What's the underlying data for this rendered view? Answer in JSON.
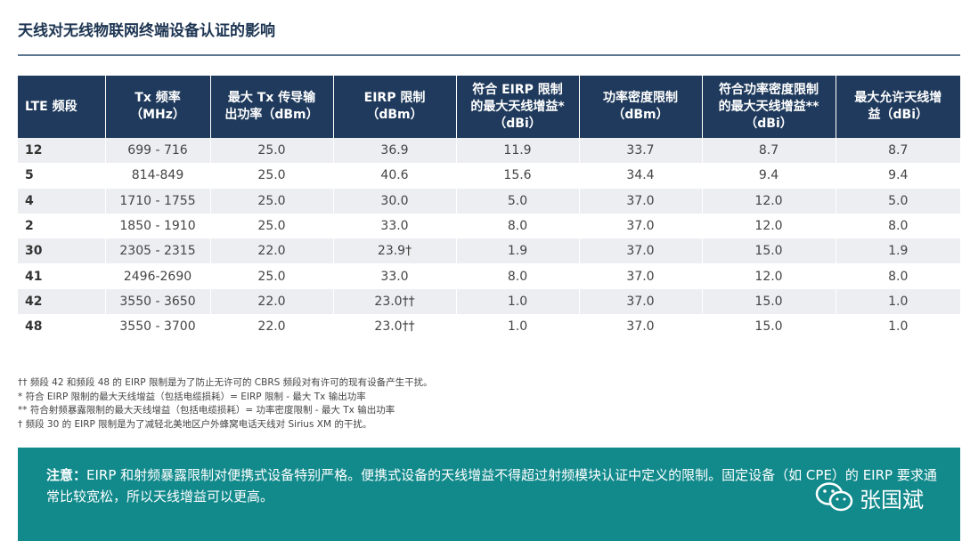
{
  "title": "天线对无线物联网终端设备认证的影响",
  "table": {
    "headers": [
      [
        "LTE 频段"
      ],
      [
        "Tx 频率",
        "（MHz）"
      ],
      [
        "最大 Tx 传导输",
        "出功率（dBm）"
      ],
      [
        "EIRP 限制",
        "（dBm）"
      ],
      [
        "符合 EIRP 限制",
        "的最大天线增益*",
        "（dBi）"
      ],
      [
        "功率密度限制",
        "（dBm）"
      ],
      [
        "符合功率密度限制",
        "的最大天线增益**",
        "（dBi）"
      ],
      [
        "最大允许天线增",
        "益（dBi）"
      ]
    ],
    "rows": [
      [
        "12",
        "699 - 716",
        "25.0",
        "36.9",
        "11.9",
        "33.7",
        "8.7",
        "8.7"
      ],
      [
        "5",
        "814-849",
        "25.0",
        "40.6",
        "15.6",
        "34.4",
        "9.4",
        "9.4"
      ],
      [
        "4",
        "1710 - 1755",
        "25.0",
        "30.0",
        "5.0",
        "37.0",
        "12.0",
        "5.0"
      ],
      [
        "2",
        "1850 - 1910",
        "25.0",
        "33.0",
        "8.0",
        "37.0",
        "12.0",
        "8.0"
      ],
      [
        "30",
        "2305 - 2315",
        "22.0",
        "23.9†",
        "1.9",
        "37.0",
        "15.0",
        "1.9"
      ],
      [
        "41",
        "2496-2690",
        "25.0",
        "33.0",
        "8.0",
        "37.0",
        "12.0",
        "8.0"
      ],
      [
        "42",
        "3550 - 3650",
        "22.0",
        "23.0††",
        "1.0",
        "37.0",
        "15.0",
        "1.0"
      ],
      [
        "48",
        "3550 - 3700",
        "22.0",
        "23.0††",
        "1.0",
        "37.0",
        "15.0",
        "1.0"
      ]
    ]
  },
  "footnotes": [
    "†† 频段 42 和频段 48 的 EIRP 限制是为了防止无许可的 CBRS 频段对有许可的现有设备产生干扰。",
    "* 符合 EIRP 限制的最大天线增益（包括电缆损耗）= EIRP 限制 - 最大 Tx 输出功率",
    "** 符合射频暴露限制的最大天线增益（包括电缆损耗）= 功率密度限制 - 最大 Tx 输出功率",
    "† 频段 30 的 EIRP 限制是为了减轻北美地区户外蜂窝电话天线对 Sirius XM 的干扰。"
  ],
  "note": {
    "label": "注意：",
    "text": "EIRP 和射频暴露限制对便携式设备特别严格。便携式设备的天线增益不得超过射频模块认证中定义的限制。固定设备（如 CPE）的 EIRP 要求通常比较宽松，所以天线增益可以更高。"
  },
  "watermark": "张国斌"
}
